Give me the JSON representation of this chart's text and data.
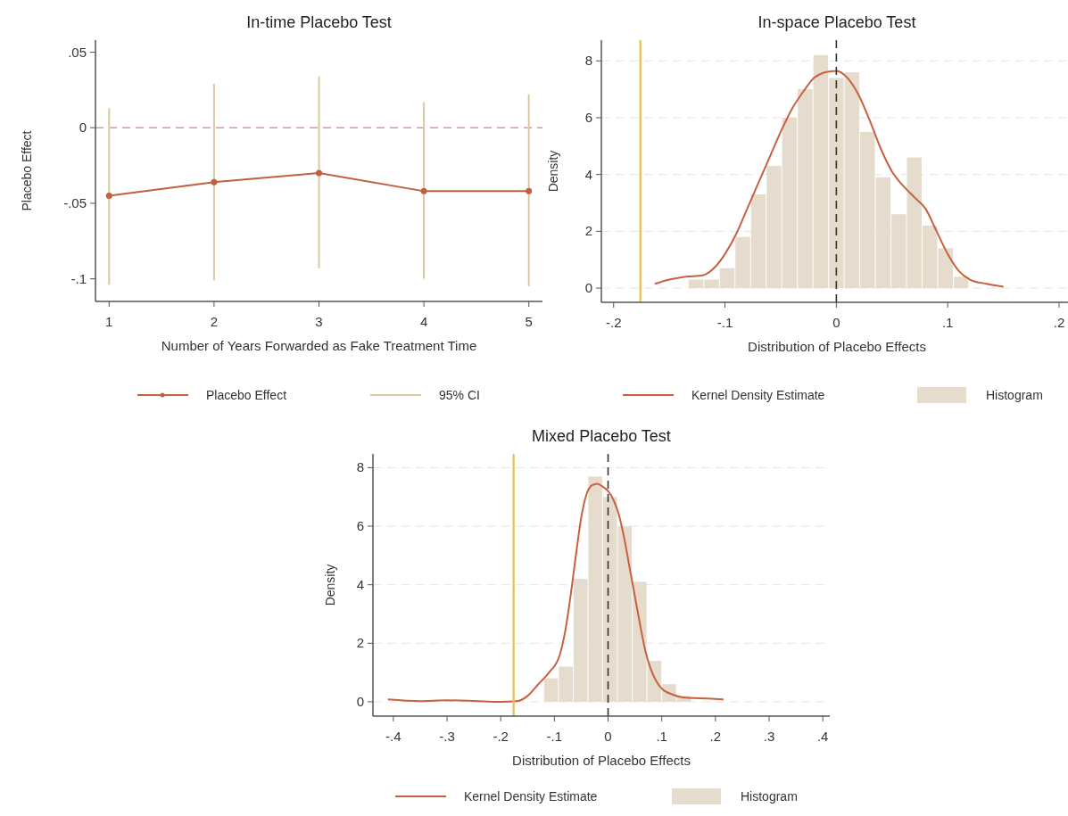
{
  "chart_data": [
    {
      "type": "line",
      "title": "In-time Placebo Test",
      "xlabel": "Number of Years Forwarded as Fake Treatment Time",
      "ylabel": "Placebo Effect",
      "x": [
        1,
        2,
        3,
        4,
        5
      ],
      "xlim": [
        0.87,
        5.13
      ],
      "xticks": [
        1,
        2,
        3,
        4,
        5
      ],
      "ylim": [
        -0.115,
        0.058
      ],
      "yticks": [
        {
          "value": 0.05,
          "label": ".05"
        },
        0,
        {
          "value": -0.05,
          "label": "-.05"
        },
        {
          "value": -0.1,
          "label": "-.1"
        }
      ],
      "grid": false,
      "legend": "bottom",
      "marker": "circle",
      "series": [
        {
          "name": "Placebo Effect",
          "type": "line",
          "color": "#c0603e",
          "values": [
            -0.045,
            -0.036,
            -0.03,
            -0.042,
            -0.042
          ]
        },
        {
          "name": "95% CI",
          "type": "bar",
          "color": "#d9c9a3",
          "base": [
            -0.104,
            -0.101,
            -0.093,
            -0.1,
            -0.105
          ],
          "values": [
            0.117,
            0.13,
            0.127,
            0.117,
            0.127
          ]
        }
      ],
      "ref_lines": [
        {
          "axis": "y",
          "value": 0,
          "color": "#d99a94",
          "line_style": "dashed"
        }
      ]
    },
    {
      "type": "histogram",
      "title": "In-space Placebo Test",
      "xlabel": "Distribution of Placebo Effects",
      "ylabel": "Density",
      "xlim": [
        -0.211,
        0.212
      ],
      "xticks": [
        {
          "value": -0.2,
          "label": "-.2"
        },
        {
          "value": -0.1,
          "label": "-.1"
        },
        0,
        {
          "value": 0.1,
          "label": ".1"
        },
        {
          "value": 0.2,
          "label": ".2"
        }
      ],
      "ylim": [
        -0.5,
        8.73
      ],
      "yticks": [
        0,
        2,
        4,
        6,
        8
      ],
      "grid": "y",
      "legend": "bottom",
      "series": [
        {
          "name": "Kernel Density Estimate",
          "type": "line",
          "color": "#c8603f",
          "x": [
            -0.163,
            -0.15,
            -0.135,
            -0.12,
            -0.11,
            -0.1,
            -0.09,
            -0.08,
            -0.07,
            -0.06,
            -0.05,
            -0.04,
            -0.03,
            -0.02,
            -0.01,
            0,
            0.01,
            0.02,
            0.03,
            0.04,
            0.05,
            0.06,
            0.07,
            0.08,
            0.09,
            0.1,
            0.11,
            0.12,
            0.135,
            0.15
          ],
          "values": [
            0.15,
            0.3,
            0.4,
            0.45,
            0.7,
            1.2,
            1.9,
            2.8,
            3.7,
            4.6,
            5.5,
            6.3,
            6.9,
            7.4,
            7.6,
            7.65,
            7.4,
            6.8,
            5.9,
            4.9,
            4.1,
            3.6,
            3.2,
            2.8,
            2.0,
            1.2,
            0.6,
            0.3,
            0.15,
            0.05
          ]
        },
        {
          "name": "Histogram",
          "type": "histogram",
          "color": "#e5dccd",
          "bins": [
            -0.133,
            -0.119,
            -0.105,
            -0.091,
            -0.077,
            -0.063,
            -0.049,
            -0.035,
            -0.021,
            -0.007,
            0.007,
            0.021,
            0.035,
            0.049,
            0.063,
            0.077,
            0.091,
            0.105,
            0.119
          ],
          "values": [
            0.3,
            0.3,
            0.7,
            1.8,
            3.3,
            4.3,
            6.0,
            7.0,
            8.2,
            7.4,
            7.6,
            5.5,
            3.9,
            2.6,
            4.6,
            2.2,
            1.4,
            0.4
          ]
        }
      ],
      "ref_lines": [
        {
          "axis": "x",
          "value": -0.176,
          "color": "#e9bf4f",
          "line_style": "solid"
        },
        {
          "axis": "x",
          "value": 0,
          "color": "#333333",
          "line_style": "dashed"
        }
      ]
    },
    {
      "type": "histogram",
      "title": "Mixed Placebo Test",
      "xlabel": "Distribution of Placebo Effects",
      "ylabel": "Density",
      "xlim": [
        -0.438,
        0.413
      ],
      "xticks": [
        {
          "value": -0.4,
          "label": "-.4"
        },
        {
          "value": -0.3,
          "label": "-.3"
        },
        {
          "value": -0.2,
          "label": "-.2"
        },
        {
          "value": -0.1,
          "label": "-.1"
        },
        0,
        {
          "value": 0.1,
          "label": ".1"
        },
        {
          "value": 0.2,
          "label": ".2"
        },
        {
          "value": 0.3,
          "label": ".3"
        },
        {
          "value": 0.4,
          "label": ".4"
        }
      ],
      "ylim": [
        -0.49,
        8.47
      ],
      "yticks": [
        0,
        2,
        4,
        6,
        8
      ],
      "grid": "y",
      "legend": "bottom",
      "series": [
        {
          "name": "Kernel Density Estimate",
          "type": "line",
          "color": "#c8603f",
          "x": [
            -0.41,
            -0.35,
            -0.3,
            -0.25,
            -0.2,
            -0.17,
            -0.15,
            -0.13,
            -0.11,
            -0.09,
            -0.08,
            -0.07,
            -0.06,
            -0.05,
            -0.04,
            -0.03,
            -0.02,
            -0.01,
            0,
            0.01,
            0.02,
            0.03,
            0.04,
            0.05,
            0.06,
            0.07,
            0.08,
            0.09,
            0.1,
            0.12,
            0.14,
            0.17,
            0.2,
            0.215
          ],
          "values": [
            0.08,
            0.02,
            0.05,
            0.03,
            0,
            0.02,
            0.2,
            0.6,
            1.0,
            1.6,
            2.4,
            3.6,
            5.0,
            6.3,
            7.1,
            7.4,
            7.45,
            7.35,
            7.2,
            6.9,
            6.4,
            5.6,
            4.6,
            3.6,
            2.6,
            1.7,
            1.1,
            0.7,
            0.45,
            0.25,
            0.15,
            0.12,
            0.1,
            0.08
          ]
        },
        {
          "name": "Histogram",
          "type": "histogram",
          "color": "#e5dccd",
          "bins": [
            -0.12,
            -0.0925,
            -0.065,
            -0.0375,
            -0.01,
            0.0175,
            0.045,
            0.0725,
            0.1,
            0.1275,
            0.155
          ],
          "values": [
            0.8,
            1.2,
            4.2,
            7.7,
            7.0,
            6.0,
            4.1,
            1.4,
            0.6,
            0.2
          ]
        }
      ],
      "ref_lines": [
        {
          "axis": "x",
          "value": -0.176,
          "color": "#e9bf4f",
          "line_style": "solid"
        },
        {
          "axis": "x",
          "value": 0,
          "color": "#333333",
          "line_style": "dashed"
        }
      ]
    }
  ]
}
